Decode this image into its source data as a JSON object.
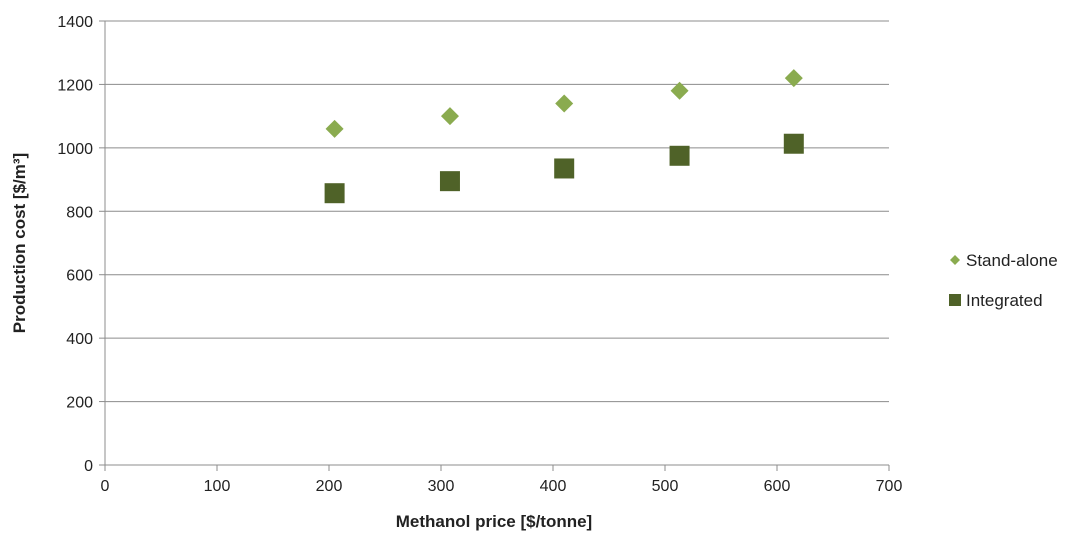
{
  "chart_data": {
    "type": "scatter",
    "xlabel": "Methanol price [$/tonne]",
    "ylabel": "Production cost [$/m³]",
    "xlim": [
      0,
      700
    ],
    "ylim": [
      0,
      1400
    ],
    "x_ticks": [
      0,
      100,
      200,
      300,
      400,
      500,
      600,
      700
    ],
    "y_ticks": [
      0,
      200,
      400,
      600,
      800,
      1000,
      1200,
      1400
    ],
    "grid": "horizontal",
    "legend_position": "right",
    "series": [
      {
        "name": "Stand-alone",
        "marker": "diamond",
        "color": "#8aab4f",
        "x": [
          205,
          308,
          410,
          513,
          615
        ],
        "y": [
          1060,
          1100,
          1140,
          1180,
          1220
        ]
      },
      {
        "name": "Integrated",
        "marker": "square",
        "color": "#4f6228",
        "x": [
          205,
          308,
          410,
          513,
          615
        ],
        "y": [
          857,
          895,
          935,
          975,
          1013
        ]
      }
    ]
  }
}
